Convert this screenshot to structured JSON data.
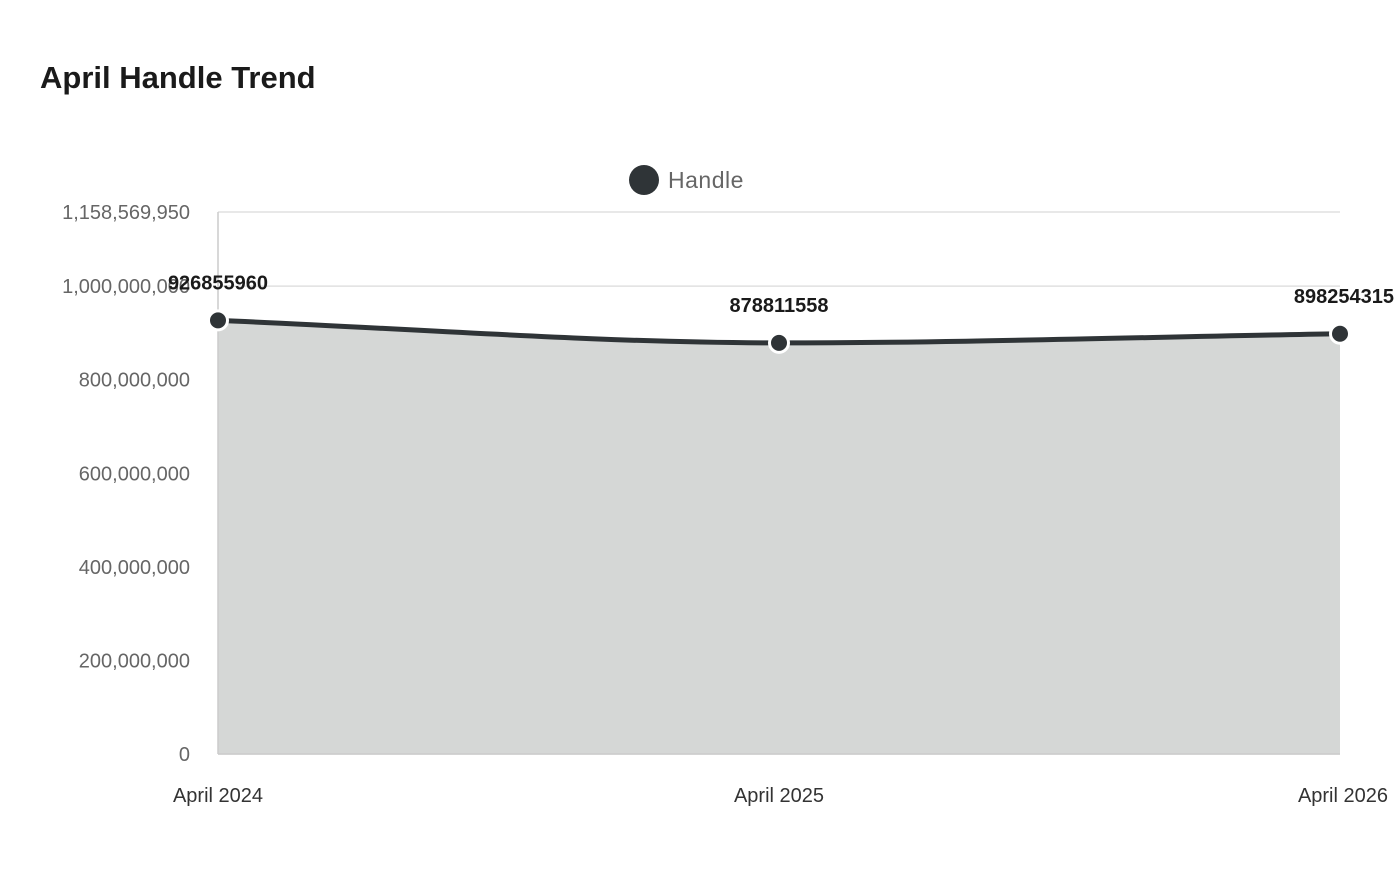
{
  "chart_data": {
    "type": "area",
    "title": "April Handle Trend",
    "xlabel": "",
    "ylabel": "",
    "categories": [
      "April 2024",
      "April 2025",
      "April 2026"
    ],
    "series": [
      {
        "name": "Handle",
        "values": [
          926855960,
          878811558,
          898254315
        ]
      }
    ],
    "ylim": [
      0,
      1158569950
    ],
    "yticks": [
      0,
      200000000,
      400000000,
      600000000,
      800000000,
      1000000000,
      1158569950
    ],
    "ytick_labels": [
      "0",
      "200,000,000",
      "400,000,000",
      "600,000,000",
      "800,000,000",
      "1,000,000,000",
      "1,158,569,950"
    ],
    "data_labels": [
      "926855960",
      "878811558",
      "898254315"
    ],
    "grid": true,
    "legend_position": "top-center",
    "colors": {
      "line": "#2f3437",
      "fill": "#d5d7d6",
      "grid": "#e0e0e0",
      "axis": "#cccccc"
    }
  }
}
